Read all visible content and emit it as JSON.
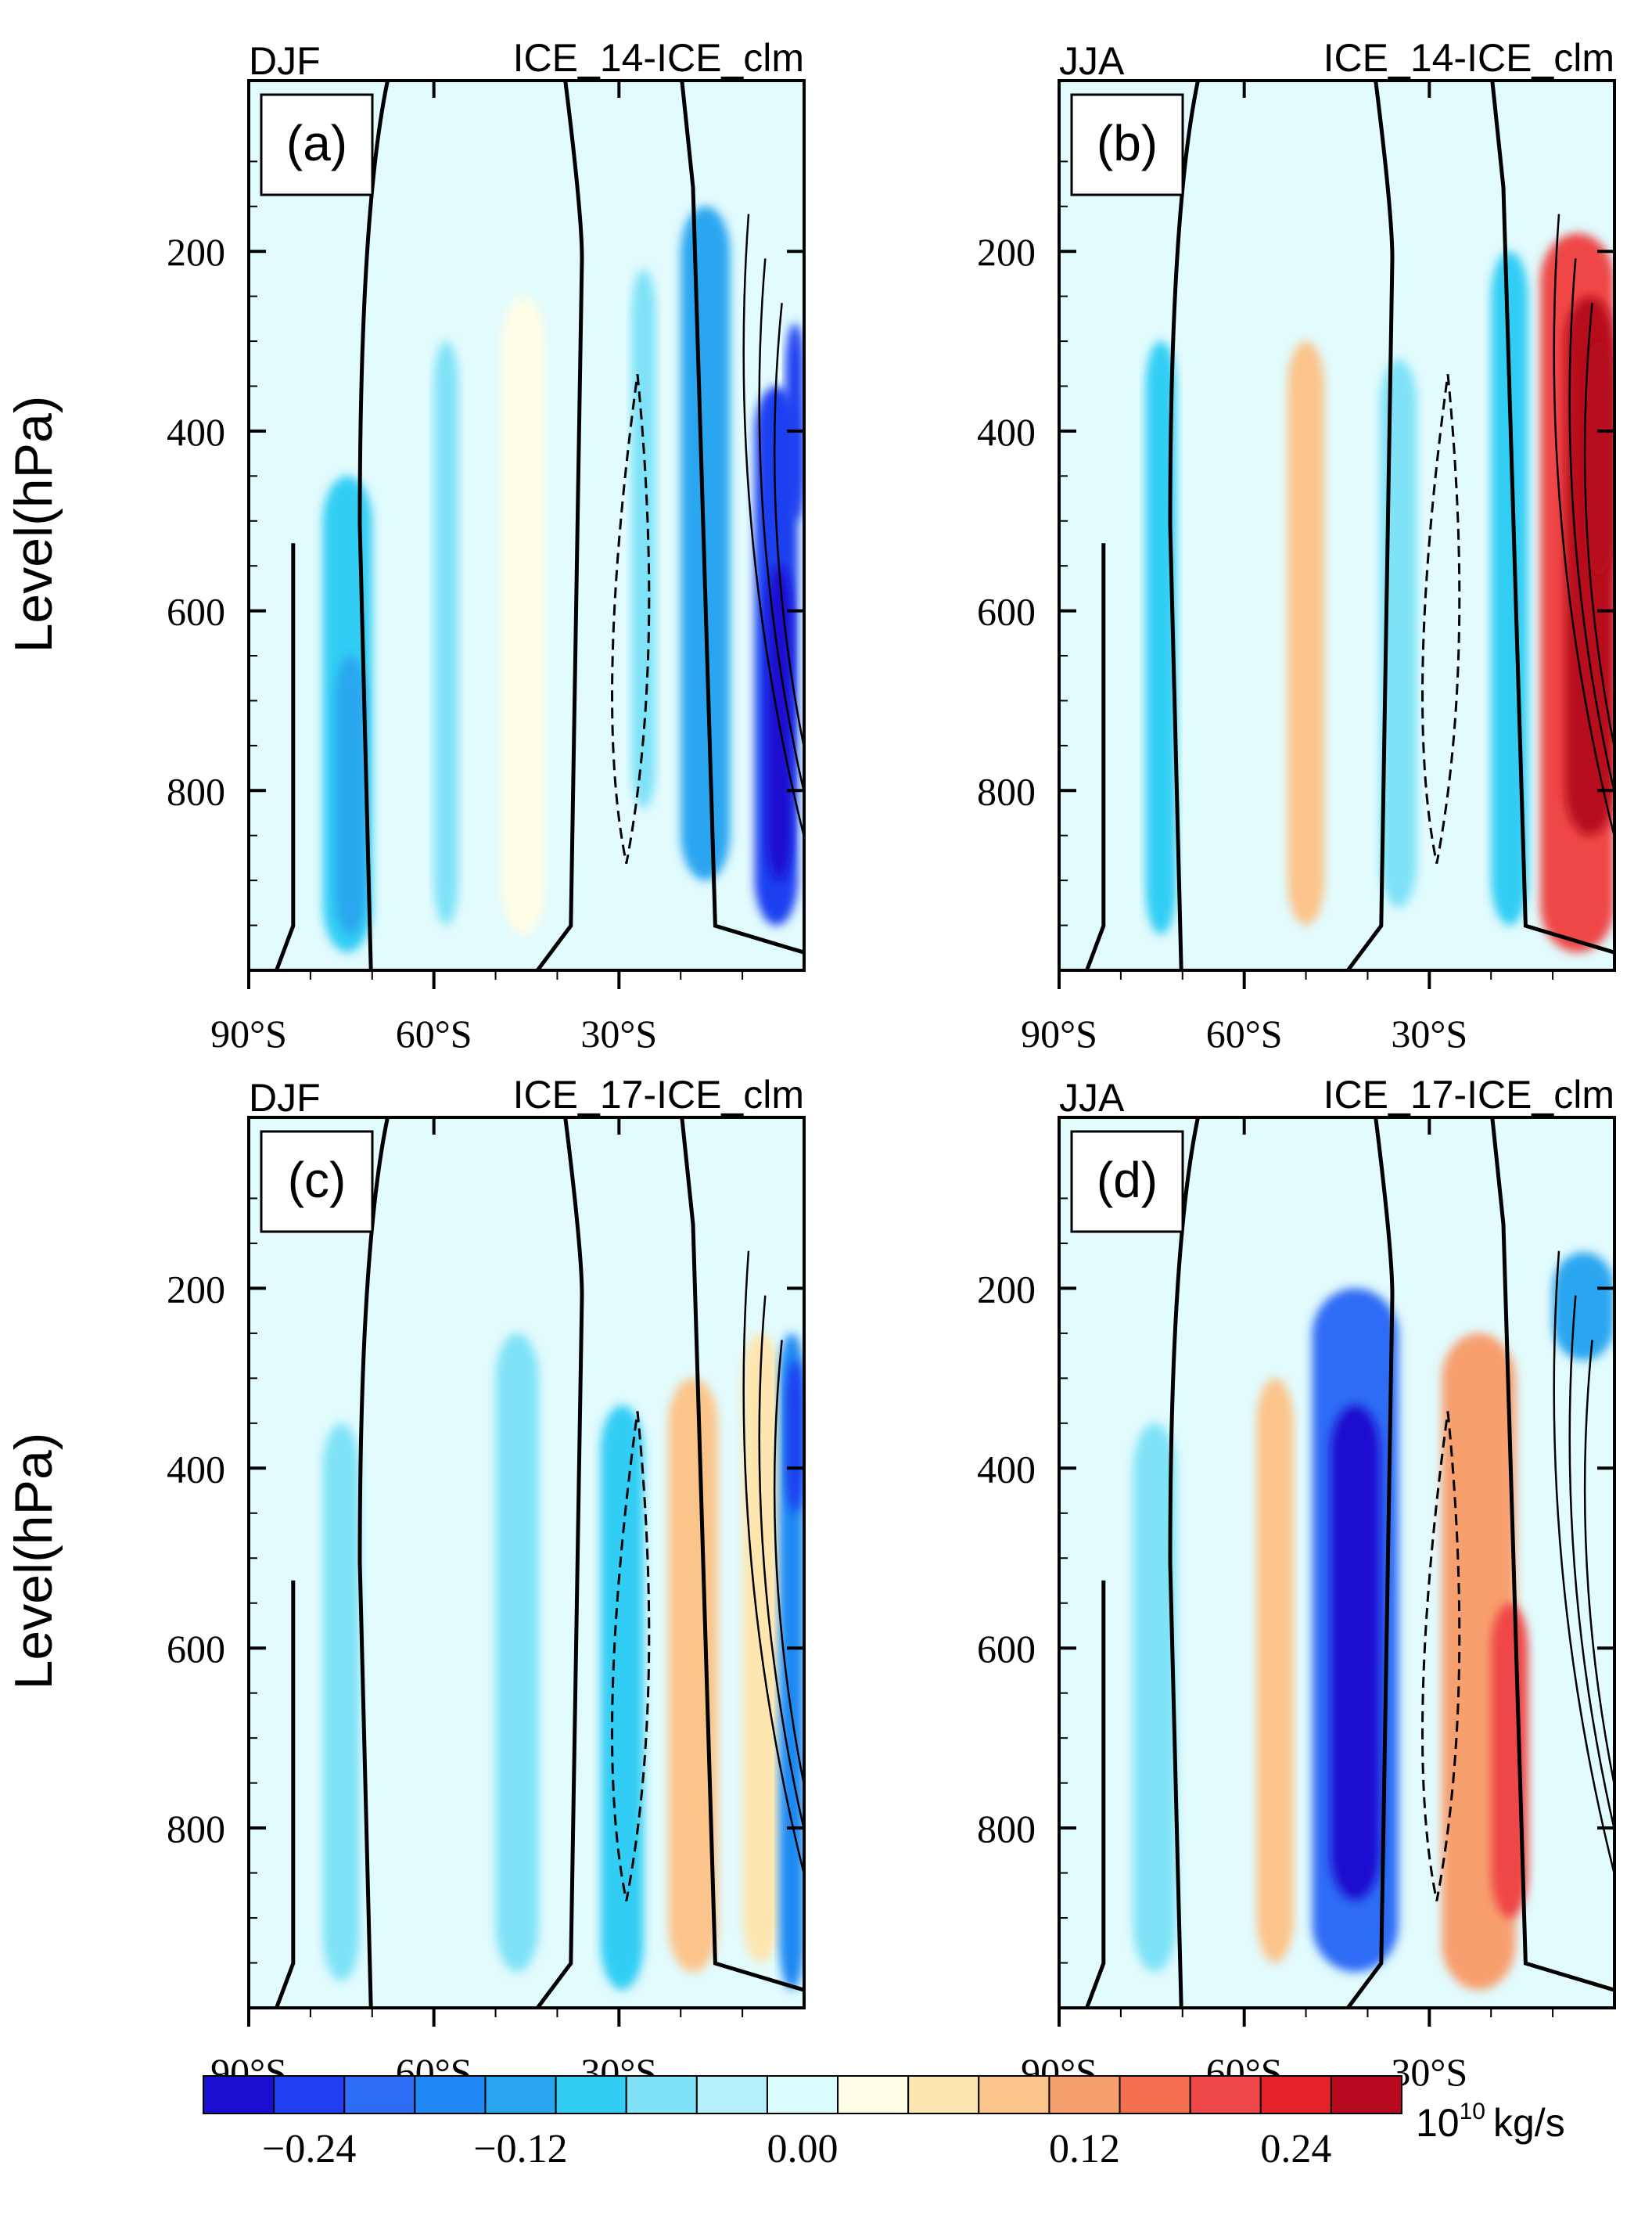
{
  "figure": {
    "ylabel": "Level(hPa)",
    "units_prefix": "10",
    "units_exponent": "10",
    "units_suffix": "kg/s"
  },
  "chart_data": [
    {
      "type": "heatmap",
      "panel": "(a)",
      "season": "DJF",
      "title": "ICE_14-ICE_clm",
      "xlabel": "",
      "ylabel": "Level(hPa)",
      "x_ticks": [
        "90°S",
        "60°S",
        "30°S"
      ],
      "y_ticks": [
        "200",
        "400",
        "600",
        "800"
      ],
      "xlim": [
        -90,
        0
      ],
      "ylim": [
        1000,
        10
      ],
      "anomaly_cells": [
        {
          "lat": [
            -78,
            -70
          ],
          "p": [
            450,
            980
          ],
          "value": -0.08
        },
        {
          "lat": [
            -76,
            -71
          ],
          "p": [
            650,
            960
          ],
          "value": -0.12
        },
        {
          "lat": [
            -60,
            -56
          ],
          "p": [
            300,
            950
          ],
          "value": -0.06
        },
        {
          "lat": [
            -49,
            -42
          ],
          "p": [
            250,
            960
          ],
          "value": 0.04
        },
        {
          "lat": [
            -28,
            -24
          ],
          "p": [
            220,
            820
          ],
          "value": -0.06
        },
        {
          "lat": [
            -20,
            -12
          ],
          "p": [
            150,
            900
          ],
          "value": -0.12
        },
        {
          "lat": [
            -8,
            -1
          ],
          "p": [
            350,
            950
          ],
          "value": -0.2
        },
        {
          "lat": [
            -6,
            -2
          ],
          "p": [
            550,
            900
          ],
          "value": -0.26
        },
        {
          "lat": [
            -3,
            0
          ],
          "p": [
            280,
            500
          ],
          "value": -0.22
        }
      ]
    },
    {
      "type": "heatmap",
      "panel": "(b)",
      "season": "JJA",
      "title": "ICE_14-ICE_clm",
      "xlabel": "",
      "ylabel": "Level(hPa)",
      "x_ticks": [
        "90°S",
        "60°S",
        "30°S"
      ],
      "y_ticks": [
        "200",
        "400",
        "600",
        "800"
      ],
      "xlim": [
        -90,
        0
      ],
      "ylim": [
        1000,
        10
      ],
      "anomaly_cells": [
        {
          "lat": [
            -76,
            -71
          ],
          "p": [
            300,
            960
          ],
          "value": -0.08
        },
        {
          "lat": [
            -53,
            -47
          ],
          "p": [
            300,
            950
          ],
          "value": 0.08
        },
        {
          "lat": [
            -38,
            -32
          ],
          "p": [
            320,
            930
          ],
          "value": -0.06
        },
        {
          "lat": [
            -20,
            -14
          ],
          "p": [
            200,
            950
          ],
          "value": -0.08
        },
        {
          "lat": [
            -12,
            0
          ],
          "p": [
            180,
            980
          ],
          "value": 0.18
        },
        {
          "lat": [
            -8,
            0
          ],
          "p": [
            250,
            850
          ],
          "value": 0.24
        },
        {
          "lat": [
            -5,
            0
          ],
          "p": [
            300,
            560
          ],
          "value": 0.28
        }
      ]
    },
    {
      "type": "heatmap",
      "panel": "(c)",
      "season": "DJF",
      "title": "ICE_17-ICE_clm",
      "xlabel": "",
      "ylabel": "Level(hPa)",
      "x_ticks": [
        "90°S",
        "60°S",
        "30°S"
      ],
      "y_ticks": [
        "200",
        "400",
        "600",
        "800"
      ],
      "xlim": [
        -90,
        0
      ],
      "ylim": [
        1000,
        10
      ],
      "anomaly_cells": [
        {
          "lat": [
            -78,
            -72
          ],
          "p": [
            350,
            970
          ],
          "value": -0.06
        },
        {
          "lat": [
            -50,
            -43
          ],
          "p": [
            250,
            960
          ],
          "value": -0.06
        },
        {
          "lat": [
            -33,
            -26
          ],
          "p": [
            330,
            980
          ],
          "value": -0.08
        },
        {
          "lat": [
            -22,
            -14
          ],
          "p": [
            300,
            960
          ],
          "value": 0.1
        },
        {
          "lat": [
            -10,
            -4
          ],
          "p": [
            250,
            950
          ],
          "value": 0.06
        },
        {
          "lat": [
            -4,
            0
          ],
          "p": [
            250,
            980
          ],
          "value": -0.16
        },
        {
          "lat": [
            -3,
            0
          ],
          "p": [
            280,
            450
          ],
          "value": -0.22
        }
      ]
    },
    {
      "type": "heatmap",
      "panel": "(d)",
      "season": "JJA",
      "title": "ICE_17-ICE_clm",
      "xlabel": "",
      "ylabel": "Level(hPa)",
      "x_ticks": [
        "90°S",
        "60°S",
        "30°S"
      ],
      "y_ticks": [
        "200",
        "400",
        "600",
        "800"
      ],
      "xlim": [
        -90,
        0
      ],
      "ylim": [
        1000,
        10
      ],
      "anomaly_cells": [
        {
          "lat": [
            -78,
            -71
          ],
          "p": [
            350,
            960
          ],
          "value": -0.06
        },
        {
          "lat": [
            -58,
            -52
          ],
          "p": [
            300,
            950
          ],
          "value": 0.08
        },
        {
          "lat": [
            -49,
            -35
          ],
          "p": [
            200,
            960
          ],
          "value": -0.18
        },
        {
          "lat": [
            -46,
            -38
          ],
          "p": [
            330,
            880
          ],
          "value": -0.26
        },
        {
          "lat": [
            -28,
            -16
          ],
          "p": [
            250,
            980
          ],
          "value": 0.12
        },
        {
          "lat": [
            -20,
            -14
          ],
          "p": [
            550,
            900
          ],
          "value": 0.18
        },
        {
          "lat": [
            -10,
            0
          ],
          "p": [
            160,
            280
          ],
          "value": -0.12
        }
      ]
    }
  ],
  "colorbar": {
    "levels": [
      "-0.24",
      "-0.12",
      "0.00",
      "0.12",
      "0.24"
    ],
    "colors": [
      "#1a0fd0",
      "#1f3ff0",
      "#2f6cf5",
      "#1f88f2",
      "#2aa6f0",
      "#33cdf4",
      "#7fe2f7",
      "#b3f0fb",
      "#dafcfd",
      "#fffde6",
      "#fde6b0",
      "#fbc48a",
      "#f89f6e",
      "#f5704f",
      "#ef4747",
      "#e6222a",
      "#b70a1e"
    ]
  }
}
